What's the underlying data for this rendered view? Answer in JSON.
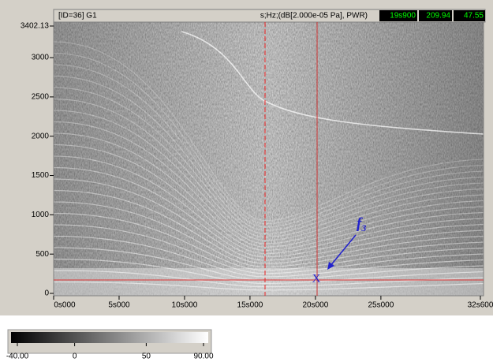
{
  "header": {
    "title": "[ID=36] G1",
    "units": "s;Hz;(dB[2.000e-05 Pa], PWR)",
    "readouts": [
      "19s900",
      "209.94",
      "47.55"
    ]
  },
  "plot": {
    "xlim": [
      0,
      32.6
    ],
    "ylim": [
      0,
      3402.13
    ],
    "yticks": [
      0,
      500,
      1000,
      1500,
      2000,
      2500,
      3000,
      {
        "value": 3402.13,
        "label": "3402.13"
      }
    ],
    "xticks": [
      {
        "value": 0,
        "label": "0s000"
      },
      {
        "value": 5,
        "label": "5s000"
      },
      {
        "value": 10,
        "label": "10s000"
      },
      {
        "value": 15,
        "label": "15s000"
      },
      {
        "value": 20,
        "label": "20s000"
      },
      {
        "value": 25,
        "label": "25s000"
      },
      {
        "value": 32.6,
        "label": "32s600"
      }
    ]
  },
  "annotation": {
    "label": "f",
    "subscript": "3",
    "marker": "X"
  },
  "colorbar": {
    "lim": [
      -40,
      90
    ],
    "ticks": [
      {
        "value": -40,
        "label": "-40.00"
      },
      0,
      50,
      {
        "value": 90,
        "label": "90.00"
      }
    ]
  }
}
